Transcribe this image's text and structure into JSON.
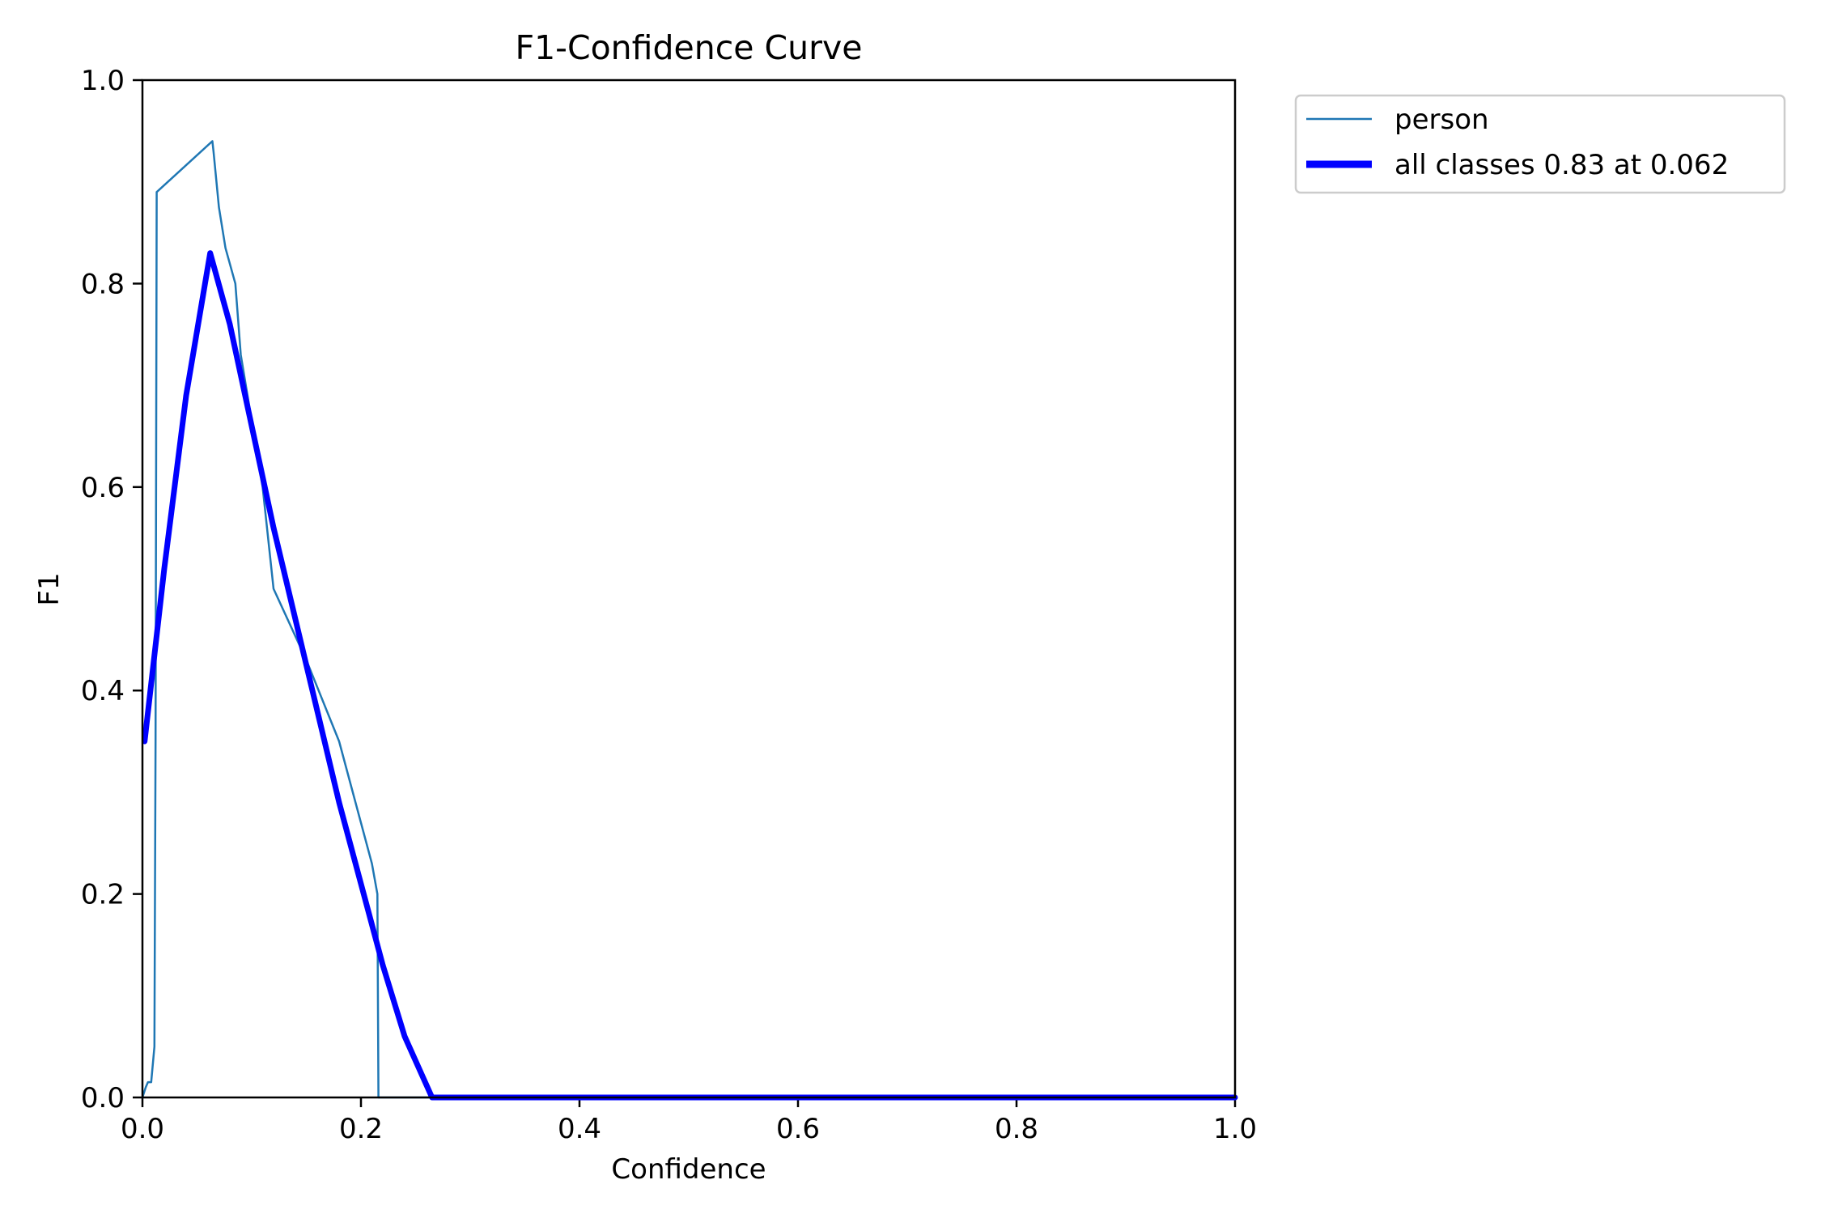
{
  "chart_data": {
    "type": "line",
    "title": "F1-Confidence Curve",
    "xlabel": "Confidence",
    "ylabel": "F1",
    "xlim": [
      0,
      1
    ],
    "ylim": [
      0,
      1
    ],
    "xticks": [
      "0.0",
      "0.2",
      "0.4",
      "0.6",
      "0.8",
      "1.0"
    ],
    "yticks": [
      "0.0",
      "0.2",
      "0.4",
      "0.6",
      "0.8",
      "1.0"
    ],
    "grid": false,
    "legend_position": "outside top-right",
    "series": [
      {
        "name": "person",
        "color": "#1f77b4",
        "points": [
          [
            0.0,
            0.0
          ],
          [
            0.003,
            0.01
          ],
          [
            0.005,
            0.015
          ],
          [
            0.008,
            0.015
          ],
          [
            0.011,
            0.05
          ],
          [
            0.012,
            0.35
          ],
          [
            0.013,
            0.89
          ],
          [
            0.064,
            0.94
          ],
          [
            0.065,
            0.93
          ],
          [
            0.07,
            0.875
          ],
          [
            0.076,
            0.835
          ],
          [
            0.085,
            0.8
          ],
          [
            0.09,
            0.73
          ],
          [
            0.11,
            0.6
          ],
          [
            0.12,
            0.5
          ],
          [
            0.15,
            0.43
          ],
          [
            0.18,
            0.35
          ],
          [
            0.21,
            0.23
          ],
          [
            0.215,
            0.2
          ],
          [
            0.216,
            0.0
          ],
          [
            1.0,
            0.0
          ]
        ]
      },
      {
        "name": "all classes 0.83 at 0.062",
        "color": "#0000ff",
        "points": [
          [
            0.002,
            0.35
          ],
          [
            0.02,
            0.52
          ],
          [
            0.04,
            0.69
          ],
          [
            0.062,
            0.83
          ],
          [
            0.08,
            0.76
          ],
          [
            0.1,
            0.66
          ],
          [
            0.12,
            0.56
          ],
          [
            0.14,
            0.47
          ],
          [
            0.16,
            0.38
          ],
          [
            0.18,
            0.29
          ],
          [
            0.2,
            0.21
          ],
          [
            0.22,
            0.13
          ],
          [
            0.24,
            0.06
          ],
          [
            0.265,
            0.0
          ],
          [
            1.0,
            0.0
          ]
        ]
      }
    ]
  }
}
